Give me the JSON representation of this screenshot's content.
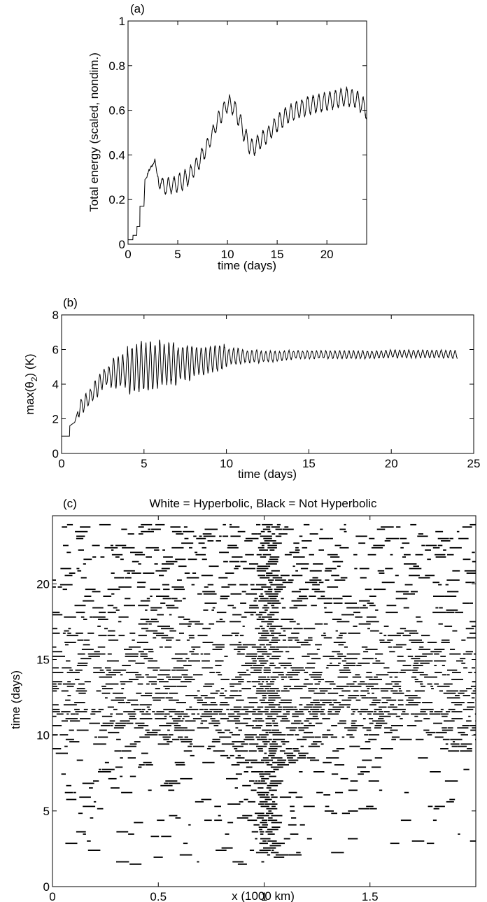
{
  "panels": {
    "a": {
      "tag": "(a)",
      "xlabel": "time (days)",
      "ylabel": "Total energy (scaled, nondim.)",
      "xlim": [
        0,
        24
      ],
      "ylim": [
        0,
        1
      ],
      "xticks": [
        "0",
        "5",
        "10",
        "15",
        "20"
      ],
      "yticks": [
        "0",
        "0.2",
        "0.4",
        "0.6",
        "0.8",
        "1"
      ]
    },
    "b": {
      "tag": "(b)",
      "xlabel": "time (days)",
      "ylabel_main": "max(θ",
      "ylabel_sub": "2",
      "ylabel_tail": ") (K)",
      "xlim": [
        0,
        25
      ],
      "ylim": [
        0,
        8
      ],
      "xticks": [
        "0",
        "5",
        "10",
        "15",
        "20",
        "25"
      ],
      "yticks": [
        "0",
        "2",
        "4",
        "6",
        "8"
      ]
    },
    "c": {
      "tag": "(c)",
      "title": "White = Hyperbolic, Black = Not Hyperbolic",
      "xlabel": "x (1000 km)",
      "ylabel": "time (days)",
      "xlim": [
        0,
        2
      ],
      "ylim": [
        0,
        24.5
      ],
      "xticks": [
        "0",
        "0.5",
        "1",
        "1.5"
      ],
      "yticks": [
        "0",
        "5",
        "10",
        "15",
        "20"
      ]
    }
  },
  "chart_data": [
    {
      "type": "line",
      "xlabel": "time (days)",
      "ylabel": "Total energy (scaled, nondim.)",
      "xlim": [
        0,
        24
      ],
      "ylim": [
        0,
        1
      ],
      "grid": false,
      "series": [
        {
          "x": [
            0,
            0.5,
            0.5,
            0.9,
            0.9,
            1.2,
            1.2,
            1.6,
            1.7,
            1.9,
            2.1,
            2.4,
            2.7,
            2.9,
            3.1,
            3.3,
            3.6,
            4,
            5,
            6,
            7,
            8,
            9,
            10,
            10.5,
            11,
            11.5,
            12,
            12.5,
            13,
            14,
            15,
            16,
            17,
            18,
            19,
            20,
            21,
            22,
            23,
            24
          ],
          "y": [
            0.02,
            0.02,
            0.04,
            0.04,
            0.08,
            0.08,
            0.17,
            0.17,
            0.29,
            0.3,
            0.35,
            0.33,
            0.4,
            0.3,
            0.27,
            0.29,
            0.25,
            0.26,
            0.27,
            0.3,
            0.36,
            0.44,
            0.55,
            0.63,
            0.62,
            0.58,
            0.52,
            0.46,
            0.43,
            0.45,
            0.49,
            0.54,
            0.58,
            0.6,
            0.62,
            0.63,
            0.64,
            0.65,
            0.66,
            0.65,
            0.6
          ],
          "oscillation": {
            "period_days": 0.56,
            "amplitude": [
              0,
              0,
              0.02,
              0.035,
              0.04,
              0.045,
              0.04,
              0.04,
              0.035,
              0.04,
              0.045,
              0.045,
              0.045,
              0.04,
              0.04,
              0.045,
              0.045,
              0.045,
              0.045,
              0.045,
              0.045,
              0.045,
              0.045,
              0.045,
              0.04
            ]
          }
        }
      ]
    },
    {
      "type": "line",
      "xlabel": "time (days)",
      "ylabel": "max(θ2) (K)",
      "xlim": [
        0,
        25
      ],
      "ylim": [
        0,
        8
      ],
      "grid": false,
      "series": [
        {
          "x": [
            0,
            0.5,
            0.5,
            0.8,
            1,
            1.5,
            2,
            2.5,
            3,
            3.5,
            4,
            5,
            6,
            7,
            8,
            9,
            10,
            11,
            12,
            13,
            14,
            15,
            16,
            17,
            18,
            19,
            20,
            21,
            22,
            23,
            24
          ],
          "y": [
            1,
            1,
            1.6,
            1.8,
            2.5,
            3,
            3.6,
            4.3,
            4.6,
            4.7,
            4.8,
            5,
            5.1,
            5.2,
            5.3,
            5.4,
            5.6,
            5.6,
            5.6,
            5.6,
            5.7,
            5.7,
            5.7,
            5.7,
            5.7,
            5.7,
            5.75,
            5.75,
            5.75,
            5.75,
            5.7
          ],
          "oscillation": {
            "period_days": 0.28,
            "amplitude": [
              0,
              0.5,
              0.6,
              1,
              1.6,
              1.5,
              1.3,
              1.1,
              0.9,
              0.8,
              0.5,
              0.4,
              0.35,
              0.3,
              0.25,
              0.25,
              0.25,
              0.25,
              0.25,
              0.25,
              0.25,
              0.25,
              0.25,
              0.25,
              0.25
            ]
          }
        }
      ]
    },
    {
      "type": "heatmap",
      "title": "White = Hyperbolic, Black = Not Hyperbolic",
      "xlabel": "x (1000 km)",
      "ylabel": "time (days)",
      "xlim": [
        0,
        2
      ],
      "ylim": [
        0,
        24.5
      ],
      "grid": false,
      "classes": [
        "Hyperbolic",
        "Not Hyperbolic"
      ],
      "class_colors": {
        "Hyperbolic": "#ffffff",
        "Not Hyperbolic": "#000000"
      },
      "non_hyperbolic_fraction_by_time": {
        "t": [
          0,
          2,
          3,
          5,
          7,
          9,
          10,
          11,
          12,
          13,
          15,
          17,
          20,
          24.5
        ],
        "fraction": [
          0,
          0.06,
          0.1,
          0.14,
          0.2,
          0.25,
          0.32,
          0.42,
          0.45,
          0.42,
          0.36,
          0.26,
          0.22,
          0.24
        ]
      },
      "band_rows": [
        {
          "t": 11.6,
          "intensity": 0.75
        },
        {
          "t": 12.8,
          "intensity": 0.45
        },
        {
          "t": 10.6,
          "intensity": 0.35
        }
      ],
      "central_column_x": 1.0
    }
  ]
}
